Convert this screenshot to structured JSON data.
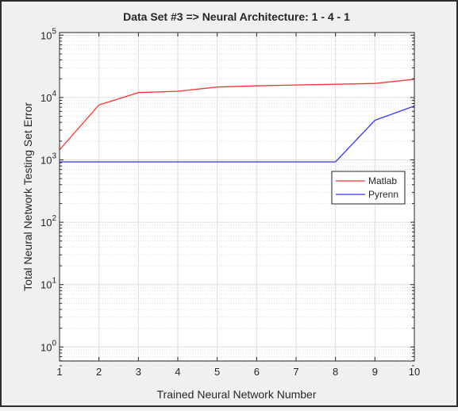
{
  "chart_data": {
    "type": "line",
    "title": "Data Set #3 => Neural Architecture: 1 - 4 - 1",
    "xlabel": "Trained Neural Network Number",
    "ylabel": "Total Neural Network Testing Set Error",
    "x": [
      1,
      2,
      3,
      4,
      5,
      6,
      7,
      8,
      9,
      10
    ],
    "xlim": [
      1,
      10
    ],
    "ylim": [
      0.5,
      100000
    ],
    "yscale": "log",
    "xticks": [
      "1",
      "2",
      "3",
      "4",
      "5",
      "6",
      "7",
      "8",
      "9",
      "10"
    ],
    "yticks": [
      {
        "value": 1,
        "base": "10",
        "exp": "0"
      },
      {
        "value": 10,
        "base": "10",
        "exp": "1"
      },
      {
        "value": 100,
        "base": "10",
        "exp": "2"
      },
      {
        "value": 1000,
        "base": "10",
        "exp": "3"
      },
      {
        "value": 10000,
        "base": "10",
        "exp": "4"
      },
      {
        "value": 100000,
        "base": "10",
        "exp": "5"
      }
    ],
    "grid": true,
    "minor_grid": true,
    "legend": "right",
    "series": [
      {
        "name": "Matlab",
        "color": "#ff3333",
        "values": [
          1450,
          7600,
          12000,
          12600,
          14700,
          15400,
          15900,
          16300,
          16800,
          19600
        ]
      },
      {
        "name": "Pyrenn",
        "color": "#3333ff",
        "values": [
          930,
          930,
          930,
          930,
          930,
          930,
          930,
          930,
          4300,
          7300
        ]
      }
    ]
  }
}
